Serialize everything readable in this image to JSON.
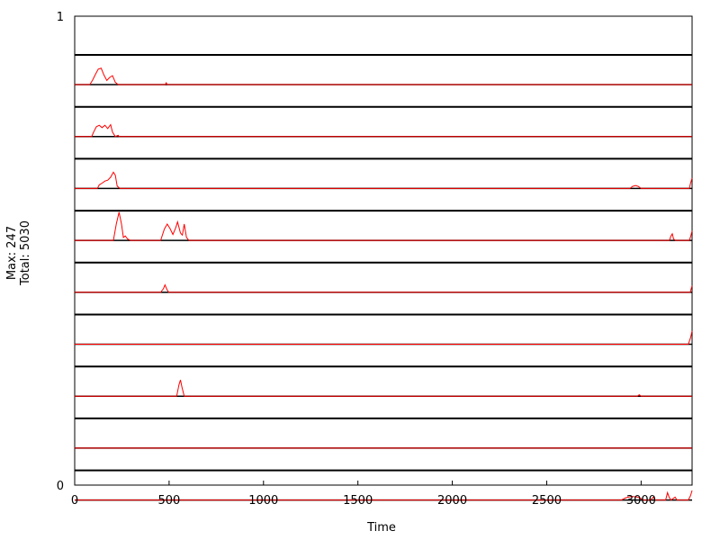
{
  "chart_data": {
    "type": "line",
    "xlabel": "Time",
    "ylabel_lines": [
      "Max: 247",
      "Total: 5030"
    ],
    "xlim": [
      0,
      3270
    ],
    "ylim": [
      0,
      1
    ],
    "xticks": [
      0,
      500,
      1000,
      1500,
      2000,
      2500,
      3000
    ],
    "yticks": [
      0,
      1
    ],
    "grid": false,
    "line_color": "#ff0000",
    "baseline_color": "#000000",
    "track_count": 9,
    "track_value_range": [
      0,
      1
    ],
    "tracks": [
      {
        "points": [
          [
            0,
            0
          ],
          [
            80,
            0
          ],
          [
            95,
            0.15
          ],
          [
            110,
            0.35
          ],
          [
            125,
            0.52
          ],
          [
            140,
            0.55
          ],
          [
            155,
            0.32
          ],
          [
            170,
            0.14
          ],
          [
            185,
            0.24
          ],
          [
            200,
            0.3
          ],
          [
            215,
            0.08
          ],
          [
            230,
            0
          ],
          [
            480,
            0
          ],
          [
            485,
            0.06
          ],
          [
            490,
            0
          ],
          [
            3270,
            0
          ]
        ]
      },
      {
        "points": [
          [
            0,
            0
          ],
          [
            90,
            0
          ],
          [
            100,
            0.15
          ],
          [
            115,
            0.33
          ],
          [
            130,
            0.38
          ],
          [
            145,
            0.3
          ],
          [
            160,
            0.38
          ],
          [
            175,
            0.27
          ],
          [
            190,
            0.4
          ],
          [
            200,
            0.15
          ],
          [
            215,
            0
          ],
          [
            230,
            0.04
          ],
          [
            235,
            0
          ],
          [
            3270,
            0
          ]
        ]
      },
      {
        "points": [
          [
            0,
            0
          ],
          [
            120,
            0
          ],
          [
            130,
            0.12
          ],
          [
            145,
            0.18
          ],
          [
            160,
            0.25
          ],
          [
            175,
            0.28
          ],
          [
            190,
            0.38
          ],
          [
            205,
            0.55
          ],
          [
            215,
            0.45
          ],
          [
            225,
            0.08
          ],
          [
            240,
            0
          ],
          [
            2940,
            0
          ],
          [
            2955,
            0.07
          ],
          [
            2970,
            0.1
          ],
          [
            2985,
            0.07
          ],
          [
            3000,
            0
          ],
          [
            3255,
            0
          ],
          [
            3262,
            0.18
          ],
          [
            3270,
            0.35
          ]
        ]
      },
      {
        "points": [
          [
            0,
            0
          ],
          [
            205,
            0
          ],
          [
            220,
            0.55
          ],
          [
            235,
            0.95
          ],
          [
            248,
            0.55
          ],
          [
            258,
            0.1
          ],
          [
            268,
            0.15
          ],
          [
            280,
            0.05
          ],
          [
            295,
            0
          ],
          [
            455,
            0
          ],
          [
            475,
            0.38
          ],
          [
            490,
            0.55
          ],
          [
            505,
            0.4
          ],
          [
            520,
            0.2
          ],
          [
            535,
            0.42
          ],
          [
            545,
            0.62
          ],
          [
            560,
            0.25
          ],
          [
            570,
            0.18
          ],
          [
            580,
            0.55
          ],
          [
            592,
            0.1
          ],
          [
            605,
            0
          ],
          [
            3150,
            0
          ],
          [
            3158,
            0.15
          ],
          [
            3165,
            0.22
          ],
          [
            3172,
            0.05
          ],
          [
            3182,
            0
          ],
          [
            3255,
            0
          ],
          [
            3262,
            0.12
          ],
          [
            3270,
            0.32
          ]
        ]
      },
      {
        "points": [
          [
            0,
            0
          ],
          [
            455,
            0
          ],
          [
            470,
            0.12
          ],
          [
            478,
            0.25
          ],
          [
            488,
            0.1
          ],
          [
            498,
            0
          ],
          [
            3260,
            0
          ],
          [
            3265,
            0.12
          ],
          [
            3270,
            0.22
          ]
        ]
      },
      {
        "points": [
          [
            0,
            0
          ],
          [
            3250,
            0
          ],
          [
            3262,
            0.22
          ],
          [
            3270,
            0.45
          ]
        ]
      },
      {
        "points": [
          [
            0,
            0
          ],
          [
            540,
            0
          ],
          [
            552,
            0.38
          ],
          [
            560,
            0.55
          ],
          [
            568,
            0.3
          ],
          [
            580,
            0
          ],
          [
            2980,
            0
          ],
          [
            2990,
            0.05
          ],
          [
            3000,
            0
          ],
          [
            3270,
            0
          ]
        ]
      },
      {
        "points": [
          [
            0,
            0
          ],
          [
            3270,
            0
          ]
        ]
      },
      {
        "points": [
          [
            0,
            0
          ],
          [
            2895,
            0
          ],
          [
            2920,
            0.08
          ],
          [
            2950,
            0.12
          ],
          [
            2980,
            0.1
          ],
          [
            3000,
            0.05
          ],
          [
            3010,
            0
          ],
          [
            3050,
            0
          ],
          [
            3065,
            0.1
          ],
          [
            3075,
            0
          ],
          [
            3130,
            0
          ],
          [
            3140,
            0.25
          ],
          [
            3148,
            0.1
          ],
          [
            3158,
            0
          ],
          [
            3180,
            0.1
          ],
          [
            3190,
            0
          ],
          [
            3250,
            0
          ],
          [
            3262,
            0.15
          ],
          [
            3270,
            0.32
          ]
        ]
      }
    ]
  }
}
